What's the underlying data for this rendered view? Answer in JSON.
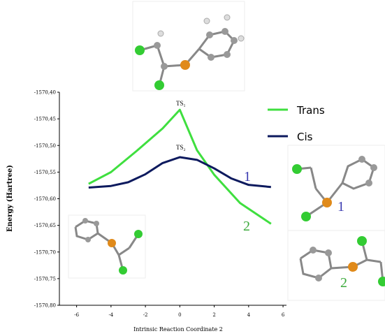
{
  "chart_data": {
    "type": "line",
    "y_label": "Energy (Hartree)",
    "x_label": "Intrinsic Reaction Coordinate 2",
    "xlim": [
      -7,
      6.2
    ],
    "ylim": [
      -1570.8,
      -1570.4
    ],
    "xticks": [
      -6,
      -4,
      -2,
      0,
      2,
      4,
      6
    ],
    "yticks": [
      {
        "value": -1570.4,
        "label": "-1570,40"
      },
      {
        "value": -1570.45,
        "label": "-1570,45"
      },
      {
        "value": -1570.5,
        "label": "-1570,50"
      },
      {
        "value": -1570.55,
        "label": "-1570,55"
      },
      {
        "value": -1570.6,
        "label": "-1570,60"
      },
      {
        "value": -1570.65,
        "label": "-1570,65"
      },
      {
        "value": -1570.7,
        "label": "-1570,70"
      },
      {
        "value": -1570.75,
        "label": "-1570,75"
      },
      {
        "value": -1570.8,
        "label": "-1570,80"
      }
    ],
    "series": [
      {
        "name": "Trans",
        "color": "#3fdf3f",
        "x": [
          -5.3,
          -4,
          -2.5,
          -1,
          0,
          1,
          2,
          3.5,
          5.3
        ],
        "values": [
          -1570.572,
          -1570.55,
          -1570.51,
          -1570.468,
          -1570.433,
          -1570.509,
          -1570.555,
          -1570.608,
          -1570.647
        ]
      },
      {
        "name": "Cis",
        "color": "#0d1a5e",
        "x": [
          -5.3,
          -4,
          -3,
          -2,
          -1,
          0,
          1,
          2,
          3,
          4,
          5.3
        ],
        "values": [
          -1570.579,
          -1570.576,
          -1570.569,
          -1570.554,
          -1570.533,
          -1570.522,
          -1570.527,
          -1570.543,
          -1570.562,
          -1570.574,
          -1570.578
        ]
      }
    ],
    "annotations": [
      "TS₁",
      "TS₂",
      "1",
      "2",
      "1",
      "2"
    ]
  }
}
